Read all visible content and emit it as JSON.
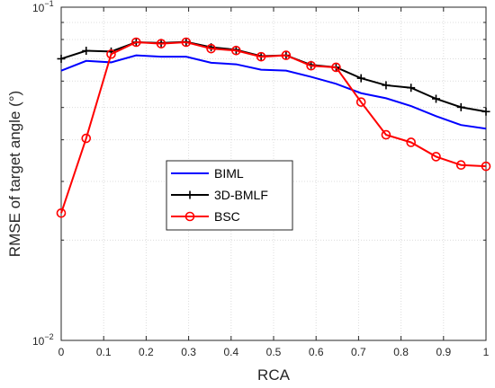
{
  "chart_data": {
    "type": "line",
    "xlabel": "RCA",
    "ylabel": "RMSE of target angle (°)",
    "xlim": [
      0,
      1
    ],
    "ylim": [
      0.01,
      0.1
    ],
    "yscale": "log",
    "grid": true,
    "legend_position": "center-left",
    "x_ticks": [
      "0",
      "0.1",
      "0.2",
      "0.3",
      "0.4",
      "0.5",
      "0.6",
      "0.7",
      "0.8",
      "0.9",
      "1"
    ],
    "y_ticks": [
      {
        "base": "10",
        "exp": "−2"
      },
      {
        "base": "10",
        "exp": "−1"
      }
    ],
    "x": [
      0,
      0.0588,
      0.1176,
      0.1765,
      0.2353,
      0.2941,
      0.3529,
      0.4118,
      0.4706,
      0.5294,
      0.5882,
      0.6471,
      0.7059,
      0.7647,
      0.8235,
      0.8824,
      0.9412,
      1.0
    ],
    "series": [
      {
        "name": "BIML",
        "color": "#0000ff",
        "marker": "none",
        "values": [
          0.0645,
          0.069,
          0.0683,
          0.0717,
          0.071,
          0.071,
          0.0681,
          0.0674,
          0.0649,
          0.0645,
          0.0618,
          0.0589,
          0.0552,
          0.0533,
          0.0505,
          0.0471,
          0.0443,
          0.0432
        ]
      },
      {
        "name": "3D-BMLF",
        "color": "#000000",
        "marker": "plus",
        "values": [
          0.07,
          0.074,
          0.0736,
          0.0785,
          0.0781,
          0.0787,
          0.0758,
          0.0745,
          0.0713,
          0.0717,
          0.0671,
          0.066,
          0.0612,
          0.0583,
          0.0573,
          0.0531,
          0.0501,
          0.0486
        ]
      },
      {
        "name": "BSC",
        "color": "#ff0000",
        "marker": "circle",
        "values": [
          0.0241,
          0.0404,
          0.0723,
          0.0785,
          0.0777,
          0.0785,
          0.0751,
          0.0741,
          0.071,
          0.0717,
          0.0667,
          0.066,
          0.0519,
          0.0414,
          0.0393,
          0.0356,
          0.0336,
          0.0333
        ]
      }
    ]
  }
}
